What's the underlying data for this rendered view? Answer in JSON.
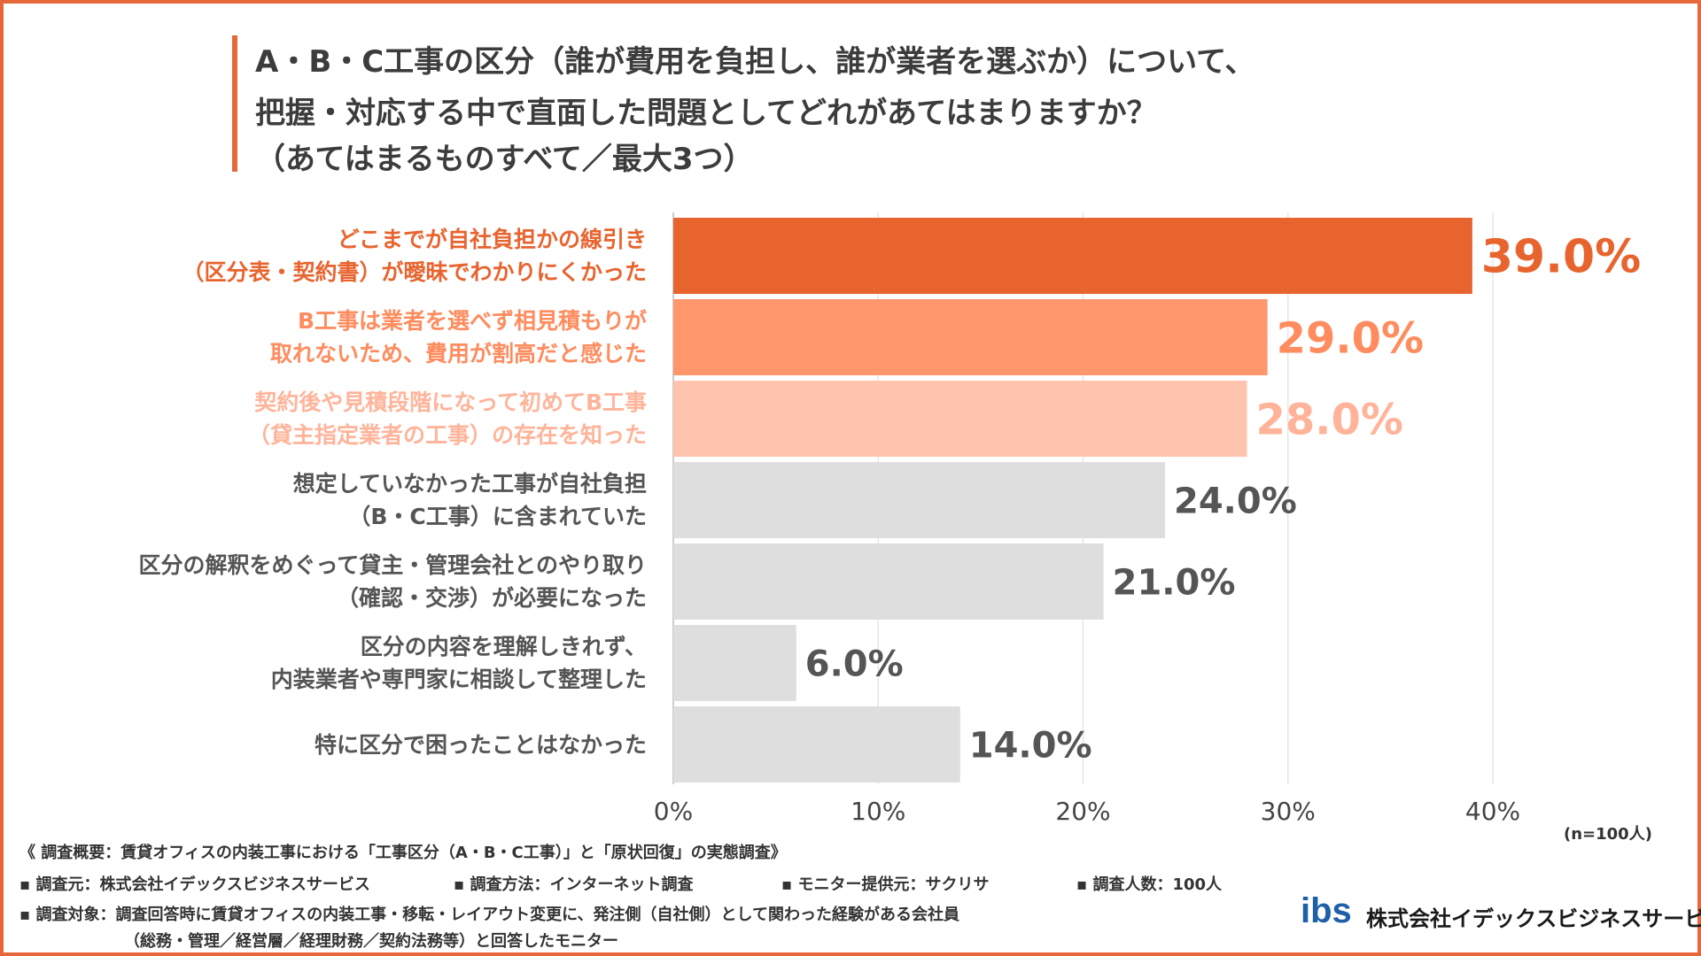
{
  "title": {
    "line1": "A・B・C工事の区分（誰が費用を負担し、誰が業者を選ぶか）について、",
    "line2": "把握・対応する中で直面した問題としてどれがあてはまりますか？",
    "line3": "（あてはまるものすべて／最大3つ）"
  },
  "colors": {
    "accent": "#E8673A",
    "bar_top1": "#E8642F",
    "bar_top2": "#FF966C",
    "bar_top3": "#FFC4AE",
    "bar_other": "#DEDEDE",
    "label_top1": "#E8642F",
    "label_top2": "#FF8C5E",
    "label_top3": "#FFB49A",
    "label_other": "#555555"
  },
  "chart_data": {
    "type": "bar",
    "orientation": "horizontal",
    "categories": [
      "どこまでが自社負担かの線引き\n（区分表・契約書）が曖昧でわかりにくかった",
      "B工事は業者を選べず相見積もりが\n取れないため、費用が割高だと感じた",
      "契約後や見積段階になって初めてB工事\n（貸主指定業者の工事）の存在を知った",
      "想定していなかった工事が自社負担\n（B・C工事）に含まれていた",
      "区分の解釈をめぐって貸主・管理会社とのやり取り\n（確認・交渉）が必要になった",
      "区分の内容を理解しきれず、\n内装業者や専門家に相談して整理した",
      "特に区分で困ったことはなかった"
    ],
    "values": [
      39.0,
      29.0,
      28.0,
      24.0,
      21.0,
      6.0,
      14.0
    ],
    "value_labels": [
      "39.0%",
      "29.0%",
      "28.0%",
      "24.0%",
      "21.0%",
      "6.0%",
      "14.0%"
    ],
    "x_ticks": [
      "0%",
      "10%",
      "20%",
      "30%",
      "40%"
    ],
    "xlim": [
      0,
      40
    ],
    "grid": true,
    "note": "(n=100人)"
  },
  "footer": {
    "summary": "《 調査概要：賃貸オフィスの内装工事における「工事区分（A・B・C工事）」と「原状回復」の実態調査》",
    "source": "▪ 調査元：株式会社イデックスビジネスサービス",
    "method": "▪ 調査方法：インターネット調査",
    "monitor": "▪ モニター提供元：サクリサ",
    "count": "▪ 調査人数：100人",
    "target1": "▪ 調査対象：調査回答時に賃貸オフィスの内装工事・移転・レイアウト変更に、発注側（自社側）として関わった経験がある会社員",
    "target2": "（総務・管理／経営層／経理財務／契約法務等）と回答したモニター"
  },
  "logo": {
    "mark": "ibs",
    "company": "株式会社イデックスビジネスサービス"
  }
}
